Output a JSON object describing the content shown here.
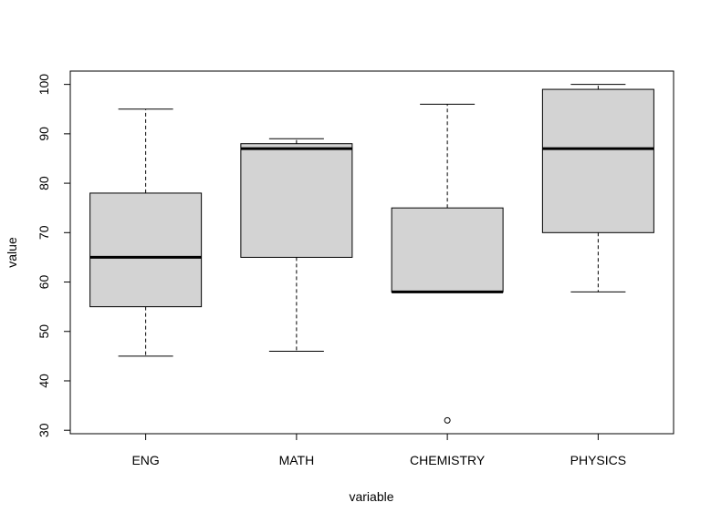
{
  "chart_data": {
    "type": "boxplot",
    "title": "",
    "xlabel": "variable",
    "ylabel": "value",
    "ylim": [
      29.3,
      102.7
    ],
    "yticks": [
      30,
      40,
      50,
      60,
      70,
      80,
      90,
      100
    ],
    "grid": false,
    "legend": "none",
    "box_fill": "#d3d3d3",
    "line_color": "#000000",
    "categories": [
      "ENG",
      "MATH",
      "CHEMISTRY",
      "PHYSICS"
    ],
    "boxes": [
      {
        "name": "ENG",
        "whisker_low": 45,
        "q1": 55,
        "median": 65,
        "q3": 78,
        "whisker_high": 95,
        "outliers": []
      },
      {
        "name": "MATH",
        "whisker_low": 46,
        "q1": 65,
        "median": 87,
        "q3": 88,
        "whisker_high": 89,
        "outliers": []
      },
      {
        "name": "CHEMISTRY",
        "whisker_low": 58,
        "q1": 58,
        "median": 58,
        "q3": 75,
        "whisker_high": 96,
        "outliers": [
          32
        ]
      },
      {
        "name": "PHYSICS",
        "whisker_low": 58,
        "q1": 70,
        "median": 87,
        "q3": 99,
        "whisker_high": 100,
        "outliers": []
      }
    ]
  }
}
